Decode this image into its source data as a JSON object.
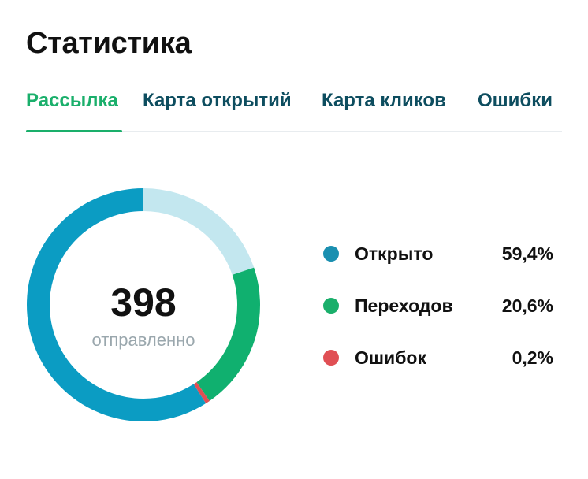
{
  "page": {
    "title": "Статистика"
  },
  "tabs": [
    {
      "label": "Рассылка",
      "active": true
    },
    {
      "label": "Карта открытий",
      "active": false
    },
    {
      "label": "Карта кликов",
      "active": false
    },
    {
      "label": "Ошибки",
      "active": false
    }
  ],
  "summary": {
    "total": "398",
    "caption": "отправленно"
  },
  "legend": [
    {
      "label": "Открыто",
      "value": "59,4%",
      "color": "#1a8fb0"
    },
    {
      "label": "Переходов",
      "value": "20,6%",
      "color": "#1aaf6b"
    },
    {
      "label": "Ошибок",
      "value": "0,2%",
      "color": "#e04f54"
    }
  ],
  "chart_data": {
    "type": "pie",
    "categories": [
      "Открыто",
      "Переходов",
      "Ошибок"
    ],
    "values": [
      59.4,
      20.6,
      0.2
    ],
    "colors": [
      "#0b9cc3",
      "#10b06f",
      "#e04f54"
    ],
    "remainder_color": "#c3e7ef"
  }
}
